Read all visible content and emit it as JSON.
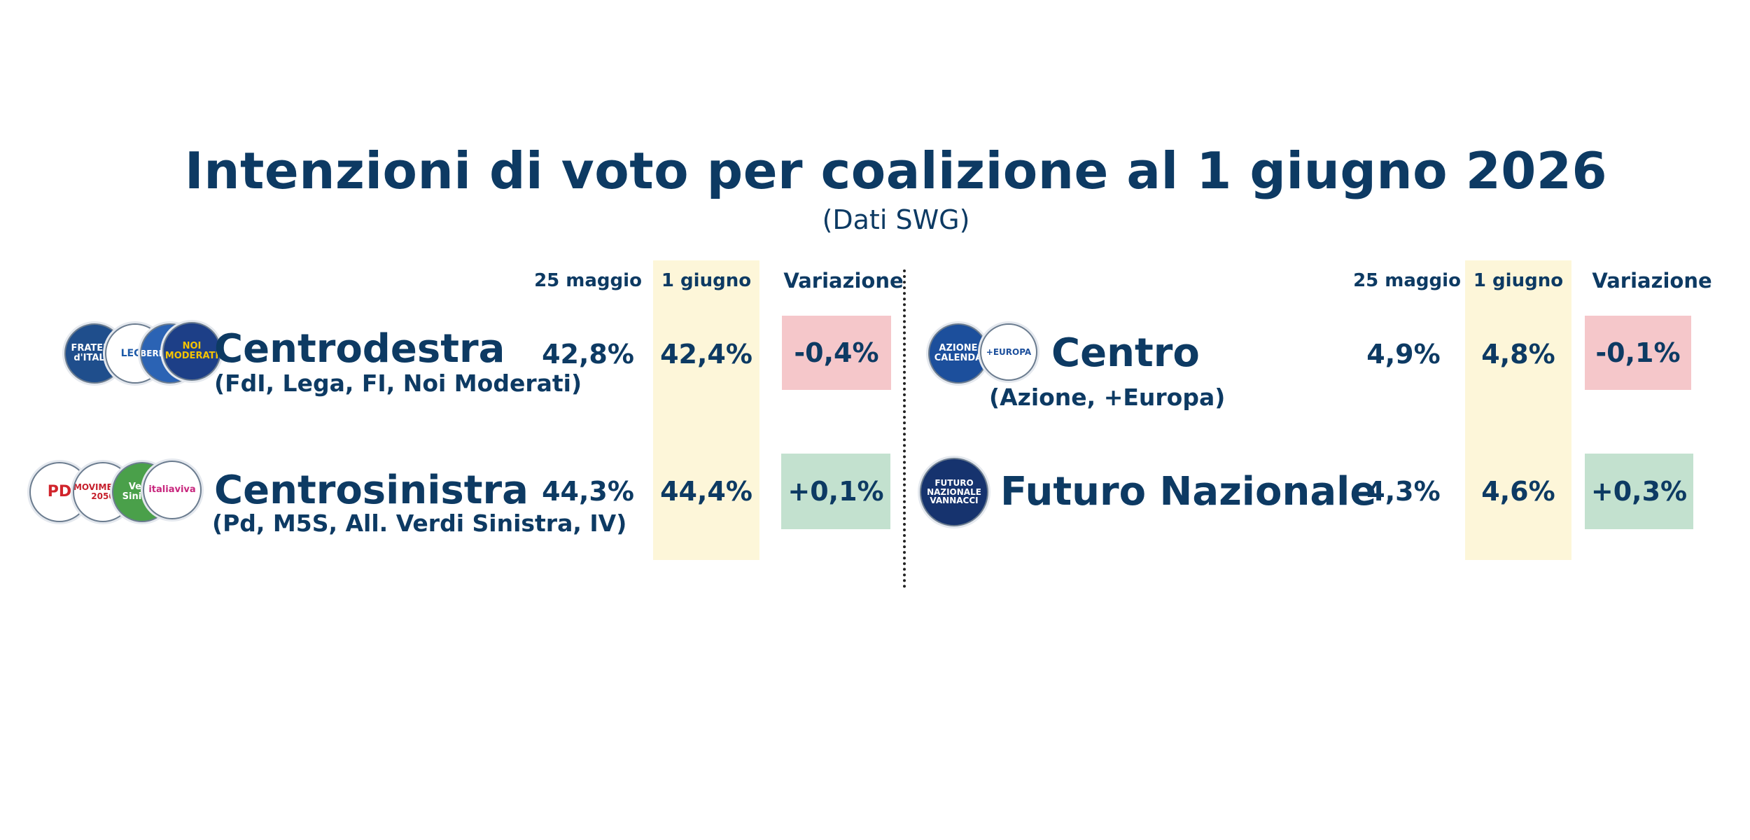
{
  "title": "Intenzioni di voto per coalizione al 1 giugno 2026",
  "subtitle": "(Dati SWG)",
  "headers": {
    "prev": "25 maggio",
    "curr": "1 giugno",
    "var": "Variazione"
  },
  "colors": {
    "text": "#0d3a63",
    "highlight_band": "#fdf6d9",
    "negative": "#f5c7ca",
    "positive": "#c3e1cf"
  },
  "coalitions": [
    {
      "name": "Centrodestra",
      "members": "(FdI, Lega, FI, Noi Moderati)",
      "prev": "42,8%",
      "curr": "42,4%",
      "var": "-0,4%",
      "logos": [
        {
          "icon": "fratelli-ditalia-logo",
          "text": "FRATELLI d'ITALIA"
        },
        {
          "icon": "lega-logo",
          "text": "LEGA"
        },
        {
          "icon": "forza-italia-logo",
          "text": "BERLUSCONI"
        },
        {
          "icon": "noi-moderati-logo",
          "text": "NOI MODERATI"
        }
      ]
    },
    {
      "name": "Centrosinistra",
      "members": "(Pd, M5S, All. Verdi Sinistra, IV)",
      "prev": "44,3%",
      "curr": "44,4%",
      "var": "+0,1%",
      "logos": [
        {
          "icon": "pd-logo",
          "text": "PD"
        },
        {
          "icon": "m5s-logo",
          "text": "MOVIMENTO 2050"
        },
        {
          "icon": "avs-logo",
          "text": "Verdi Sinistra"
        },
        {
          "icon": "italia-viva-logo",
          "text": "italiaviva"
        }
      ]
    },
    {
      "name": "Centro",
      "members": "(Azione, +Europa)",
      "prev": "4,9%",
      "curr": "4,8%",
      "var": "-0,1%",
      "logos": [
        {
          "icon": "azione-logo",
          "text": "AZIONE CALENDA"
        },
        {
          "icon": "piu-europa-logo",
          "text": "+EUROPA"
        }
      ]
    },
    {
      "name": "Futuro Nazionale",
      "members": "",
      "prev": "4,3%",
      "curr": "4,6%",
      "var": "+0,3%",
      "logos": [
        {
          "icon": "futuro-nazionale-logo",
          "text": "FUTURO NAZIONALE VANNACCI"
        }
      ]
    }
  ]
}
